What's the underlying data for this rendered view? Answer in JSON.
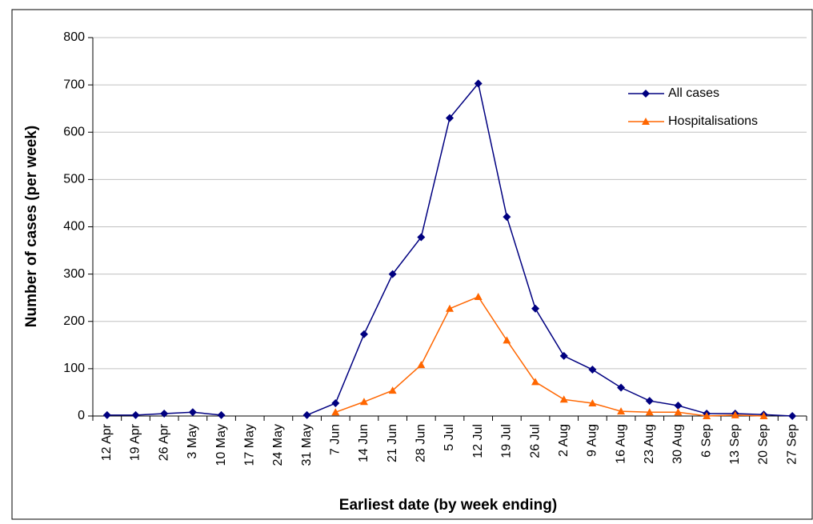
{
  "chart_data": {
    "type": "line",
    "x_label": "Earliest date (by week ending)",
    "y_label": "Number of cases (per week)",
    "categories": [
      "12 Apr",
      "19 Apr",
      "26 Apr",
      "3 May",
      "10 May",
      "17 May",
      "24 May",
      "31 May",
      "7 Jun",
      "14 Jun",
      "21 Jun",
      "28 Jun",
      "5 Jul",
      "12 Jul",
      "19 Jul",
      "26 Jul",
      "2 Aug",
      "9 Aug",
      "16 Aug",
      "23 Aug",
      "30 Aug",
      "6 Sep",
      "13 Sep",
      "20 Sep",
      "27 Sep"
    ],
    "series": [
      {
        "name": "All cases",
        "color": "#000080",
        "marker": "diamond",
        "values": [
          2,
          2,
          5,
          8,
          2,
          null,
          null,
          2,
          27,
          173,
          300,
          378,
          630,
          703,
          421,
          227,
          127,
          98,
          60,
          32,
          22,
          5,
          5,
          3,
          0
        ]
      },
      {
        "name": "Hospitalisations",
        "color": "#ff6600",
        "marker": "triangle",
        "values": [
          null,
          null,
          null,
          null,
          null,
          null,
          null,
          null,
          8,
          30,
          54,
          108,
          227,
          252,
          160,
          72,
          35,
          27,
          10,
          8,
          8,
          0,
          2,
          0,
          null
        ]
      }
    ],
    "ylim": [
      0,
      800
    ],
    "yticks": [
      0,
      100,
      200,
      300,
      400,
      500,
      600,
      700,
      800
    ],
    "grid": true,
    "legend": "upper right"
  }
}
